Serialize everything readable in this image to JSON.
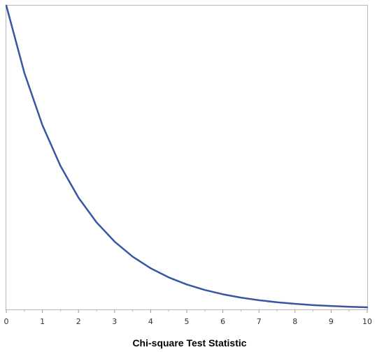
{
  "chart_data": {
    "type": "line",
    "title": "",
    "xlabel": "Chi-square Test Statistic",
    "ylabel": "",
    "xlim": [
      0,
      10
    ],
    "ylim": [
      0,
      0.5
    ],
    "x_ticks": [
      0,
      1,
      2,
      3,
      4,
      5,
      6,
      7,
      8,
      9,
      10
    ],
    "x_tick_labels": [
      "0",
      "1",
      "2",
      "3",
      "4",
      "5",
      "6",
      "7",
      "8",
      "9",
      "10"
    ],
    "grid": false,
    "legend": "none",
    "series": [
      {
        "color": "#3a55a4",
        "x": [
          0,
          0.5,
          1,
          1.5,
          2,
          2.5,
          3,
          3.5,
          4,
          4.5,
          5,
          5.5,
          6,
          6.5,
          7,
          7.5,
          8,
          8.5,
          9,
          9.5,
          10
        ],
        "y": [
          0.5,
          0.3894,
          0.3033,
          0.2362,
          0.1839,
          0.1433,
          0.1116,
          0.0869,
          0.0677,
          0.0527,
          0.041,
          0.032,
          0.0249,
          0.0194,
          0.0151,
          0.0118,
          0.0092,
          0.0071,
          0.0056,
          0.0043,
          0.0034
        ]
      }
    ]
  }
}
